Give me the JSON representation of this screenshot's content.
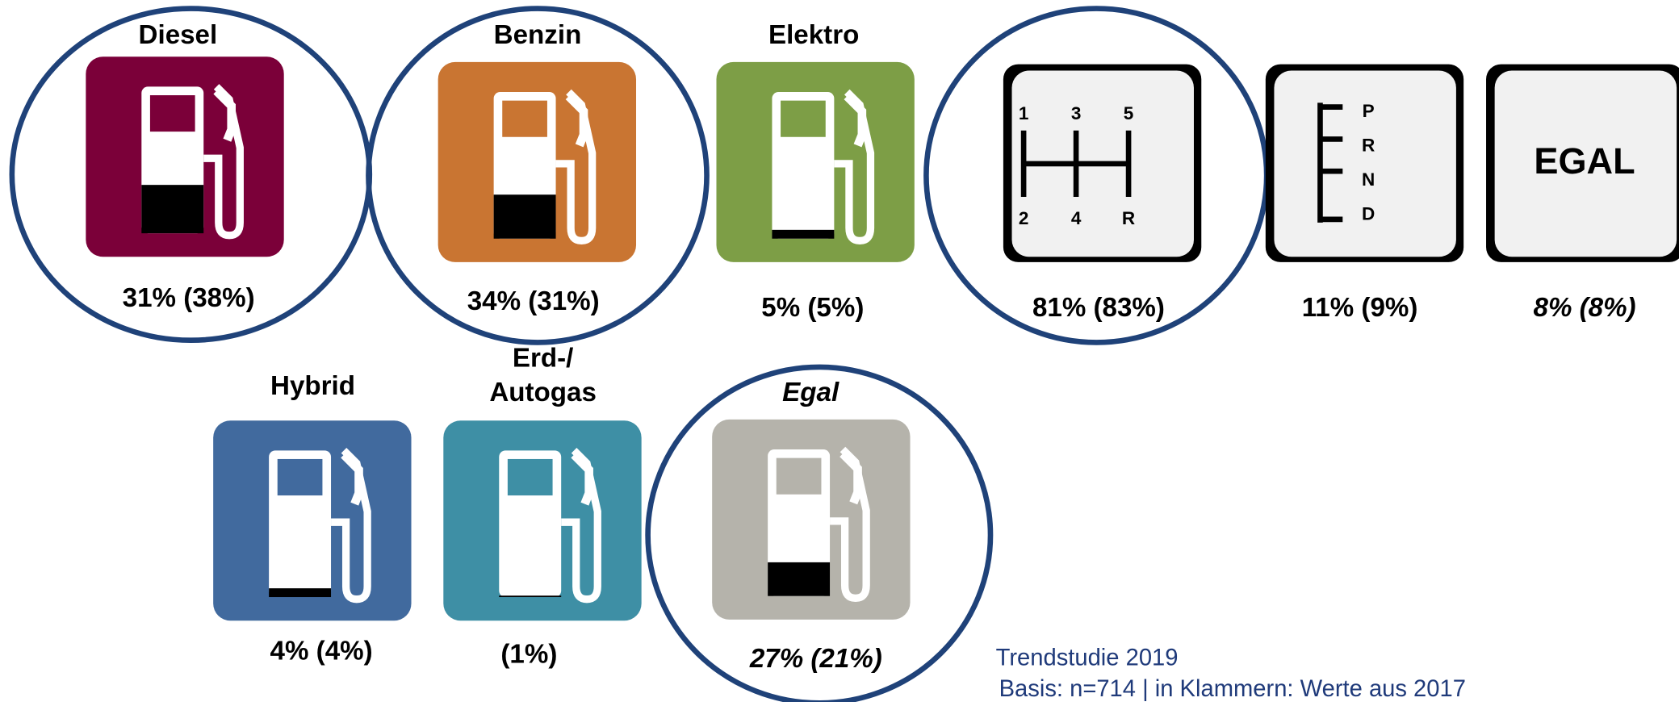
{
  "fuels": [
    {
      "label": [
        "Diesel"
      ],
      "value": "31% (38%)",
      "color": "#7b0039",
      "highlighted": true,
      "italic": false
    },
    {
      "label": [
        "Benzin"
      ],
      "value": "34% (31%)",
      "color": "#c97532",
      "highlighted": true,
      "italic": false
    },
    {
      "label": [
        "Elektro"
      ],
      "value": "5% (5%)",
      "color": "#7d9e46",
      "highlighted": false,
      "italic": false
    },
    {
      "label": [
        "Hybrid"
      ],
      "value": "4% (4%)",
      "color": "#416a9e",
      "highlighted": false,
      "italic": false
    },
    {
      "label": [
        "Erd-/",
        "Autogas"
      ],
      "value": "(1%)",
      "color": "#3e8fa5",
      "highlighted": false,
      "italic": false
    },
    {
      "label": [
        "Egal"
      ],
      "value": "27% (21%)",
      "color": "#b5b3ab",
      "highlighted": true,
      "italic": true
    }
  ],
  "transmissions": [
    {
      "gears": [
        "1",
        "3",
        "5",
        "2",
        "4",
        "R"
      ],
      "value": "81% (83%)",
      "highlighted": true,
      "italic": false
    },
    {
      "gears": [
        "P",
        "R",
        "N",
        "D"
      ],
      "value": "11% (9%)",
      "highlighted": false,
      "italic": false
    },
    {
      "gears": [
        "EGAL"
      ],
      "value": "8%  (8%)",
      "highlighted": false,
      "italic": true
    }
  ],
  "footer": [
    "Trendstudie 2019",
    "Basis: n=714 | in Klammern: Werte aus 2017"
  ],
  "circle_color": "#1f4279"
}
